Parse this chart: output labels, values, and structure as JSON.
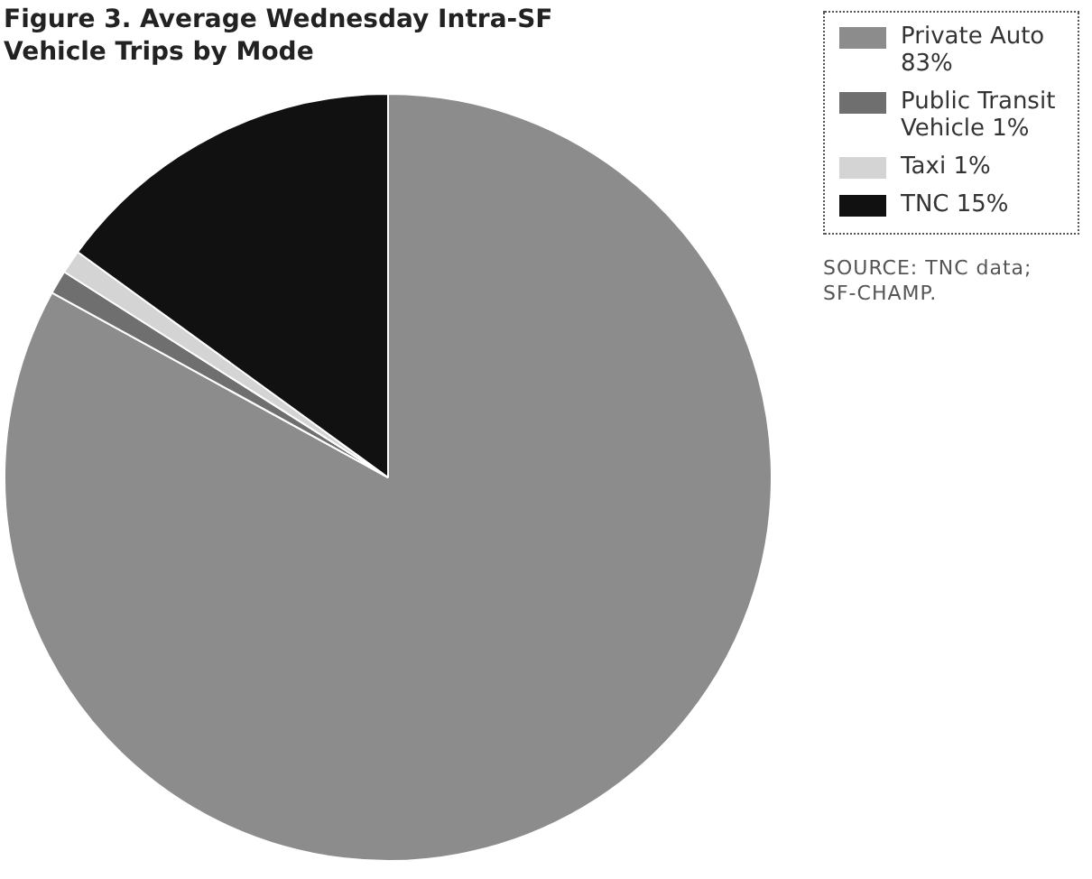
{
  "chart_data": {
    "type": "pie",
    "title": "Figure 3. Average Wednesday Intra-SF Vehicle Trips by Mode",
    "categories": [
      "Private Auto 83%",
      "Public Transit Vehicle 1%",
      "Taxi 1%",
      "TNC 15%"
    ],
    "values": [
      83,
      1,
      1,
      15
    ],
    "colors": [
      "#8c8c8c",
      "#6f6f6f",
      "#d4d4d4",
      "#111111"
    ],
    "legend": "top right",
    "annotations": [
      "SOURCE: TNC data; SF-CHAMP."
    ]
  }
}
